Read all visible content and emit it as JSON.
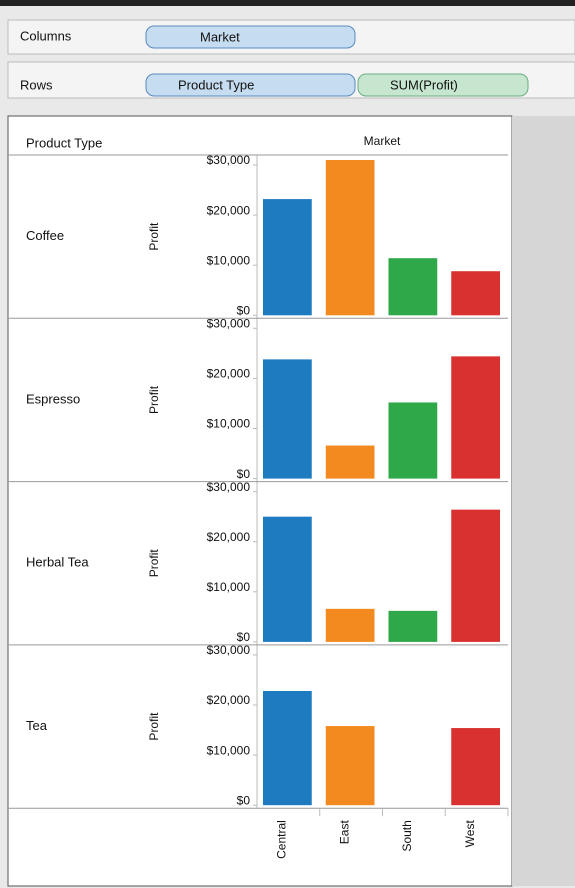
{
  "shelves": {
    "columns_label": "Columns",
    "columns_pill": "Market",
    "rows_label": "Rows",
    "rows_pills": [
      "Product Type",
      "SUM(Profit)"
    ]
  },
  "chart_data": {
    "type": "bar",
    "x_title": "Market",
    "row_header": "Product Type",
    "y_label": "Profit",
    "categories": [
      "Central",
      "East",
      "South",
      "West"
    ],
    "colors": [
      "#1f7bbf",
      "#f28a1f",
      "#2fa84a",
      "#d8312f"
    ],
    "panels": [
      {
        "name": "Coffee",
        "values": [
          23200,
          31000,
          11400,
          8800
        ]
      },
      {
        "name": "Espresso",
        "values": [
          23800,
          6600,
          15200,
          24400
        ]
      },
      {
        "name": "Herbal Tea",
        "values": [
          25000,
          6600,
          6200,
          26400
        ]
      },
      {
        "name": "Tea",
        "values": [
          22800,
          15800,
          null,
          15400
        ]
      }
    ],
    "ylim": [
      0,
      32000
    ],
    "yticks": [
      {
        "value": 0,
        "label": "$0"
      },
      {
        "value": 10000,
        "label": "$10,000"
      },
      {
        "value": 20000,
        "label": "$20,000"
      },
      {
        "value": 30000,
        "label": "$30,000"
      }
    ]
  }
}
